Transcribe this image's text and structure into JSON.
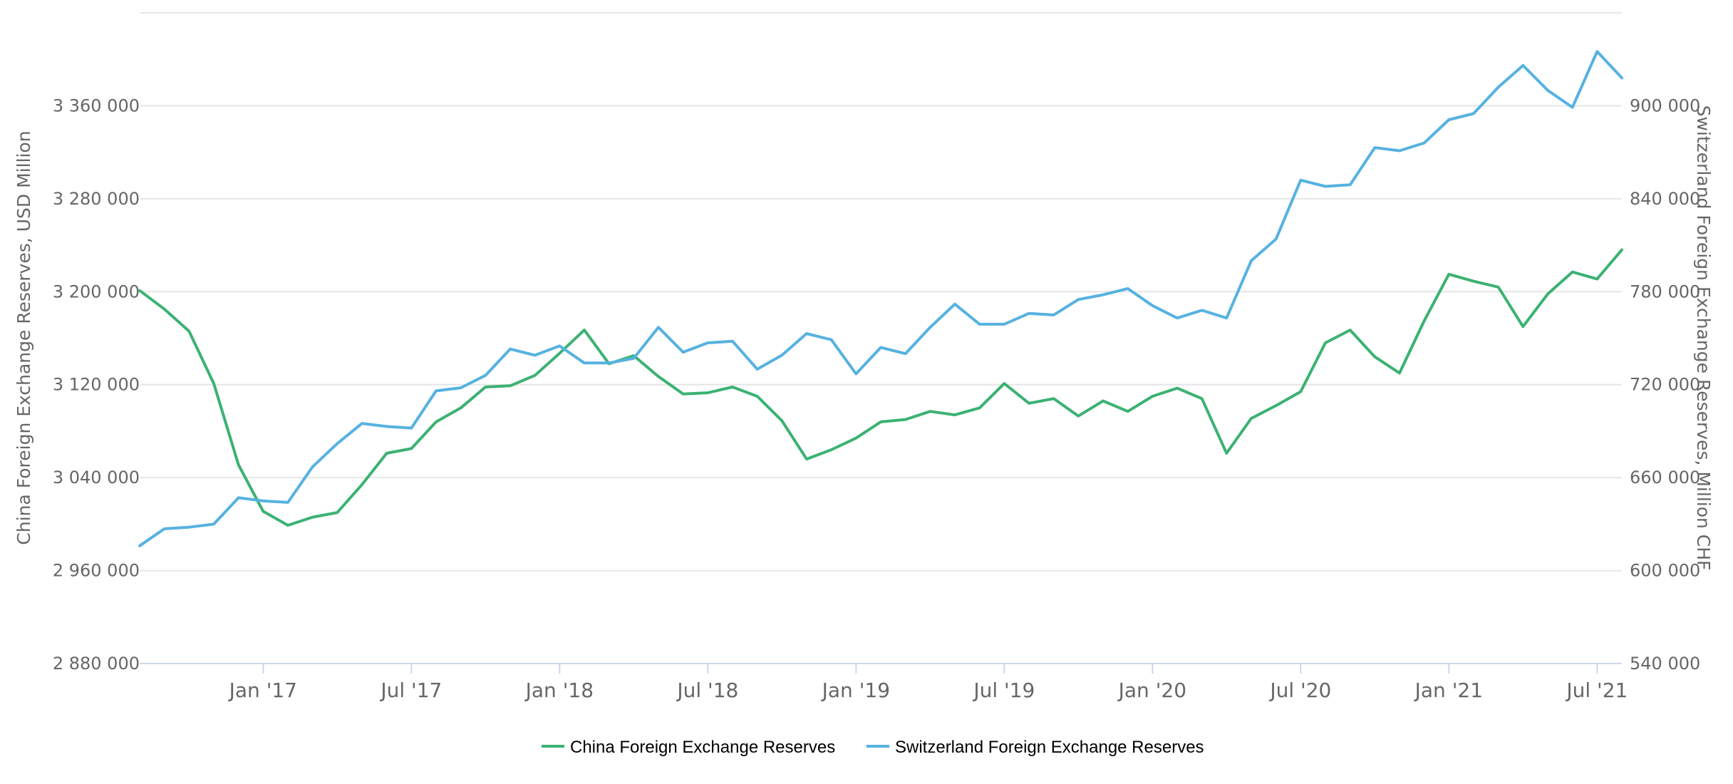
{
  "chart_data": {
    "type": "line",
    "title": "",
    "x_ticks": [
      "Jan '17",
      "Jul '17",
      "Jan '18",
      "Jul '18",
      "Jan '19",
      "Jul '19",
      "Jan '20",
      "Jul '20",
      "Jan '21",
      "Jul '21"
    ],
    "x_range": [
      "2016-08",
      "2021-08"
    ],
    "x": [
      "2016-08",
      "2016-09",
      "2016-10",
      "2016-11",
      "2016-12",
      "2017-01",
      "2017-02",
      "2017-03",
      "2017-04",
      "2017-05",
      "2017-06",
      "2017-07",
      "2017-08",
      "2017-09",
      "2017-10",
      "2017-11",
      "2017-12",
      "2018-01",
      "2018-02",
      "2018-03",
      "2018-04",
      "2018-05",
      "2018-06",
      "2018-07",
      "2018-08",
      "2018-09",
      "2018-10",
      "2018-11",
      "2018-12",
      "2019-01",
      "2019-02",
      "2019-03",
      "2019-04",
      "2019-05",
      "2019-06",
      "2019-07",
      "2019-08",
      "2019-09",
      "2019-10",
      "2019-11",
      "2019-12",
      "2020-01",
      "2020-02",
      "2020-03",
      "2020-04",
      "2020-05",
      "2020-06",
      "2020-07",
      "2020-08",
      "2020-09",
      "2020-10",
      "2020-11",
      "2020-12",
      "2021-01",
      "2021-02",
      "2021-03",
      "2021-04",
      "2021-05",
      "2021-06",
      "2021-07",
      "2021-08"
    ],
    "y_left": {
      "label": "China Foreign Exchange Reserves, USD Million",
      "ticks": [
        "2 880 000",
        "2 960 000",
        "3 040 000",
        "3 120 000",
        "3 200 000",
        "3 280 000",
        "3 360 000"
      ],
      "range": [
        2880000,
        3440000
      ]
    },
    "y_right": {
      "label": "Switzerland Foreign Exchange Reserves, Million CHF",
      "ticks": [
        "540 000",
        "600 000",
        "660 000",
        "720 000",
        "780 000",
        "840 000",
        "900 000"
      ],
      "range": [
        540000,
        960000
      ]
    },
    "grid": true,
    "legend_position": "bottom",
    "series": [
      {
        "name": "China Foreign Exchange Reserves",
        "axis": "left",
        "color": "#3bb273",
        "values": [
          3201000,
          3185000,
          3166000,
          3121000,
          3051000,
          3011000,
          2999000,
          3006000,
          3010000,
          3034000,
          3061000,
          3065000,
          3088000,
          3100000,
          3118000,
          3119000,
          3128000,
          3147000,
          3167000,
          3138000,
          3145000,
          3127000,
          3112000,
          3113000,
          3118000,
          3110000,
          3089000,
          3056000,
          3064000,
          3074000,
          3088000,
          3090000,
          3097000,
          3094000,
          3100000,
          3121000,
          3104000,
          3108000,
          3093000,
          3106000,
          3097000,
          3110000,
          3117000,
          3108000,
          3061000,
          3091000,
          3102000,
          3114000,
          3156000,
          3167000,
          3144000,
          3130000,
          3175000,
          3215000,
          3209000,
          3204000,
          3170000,
          3198000,
          3217000,
          3211000,
          3236000
        ]
      },
      {
        "name": "Switzerland Foreign Exchange Reserves",
        "axis": "right",
        "color": "#56b2e0",
        "values": [
          616000,
          627000,
          628000,
          630000,
          647000,
          645000,
          644000,
          667000,
          682000,
          695000,
          693000,
          692000,
          716000,
          718000,
          726000,
          743000,
          739000,
          745000,
          734000,
          734000,
          737000,
          757000,
          741000,
          747000,
          748000,
          730000,
          739000,
          753000,
          749000,
          727000,
          744000,
          740000,
          757000,
          772000,
          759000,
          759000,
          766000,
          765000,
          775000,
          778000,
          782000,
          771000,
          763000,
          768000,
          763000,
          800000,
          814000,
          852000,
          848000,
          849000,
          873000,
          871000,
          876000,
          891000,
          895000,
          912000,
          926000,
          910000,
          899000,
          935000,
          918000
        ]
      }
    ]
  },
  "colors": {
    "grid": "#e6e6e6",
    "axis_line": "#ccd6eb",
    "tick_text": "#666666"
  }
}
